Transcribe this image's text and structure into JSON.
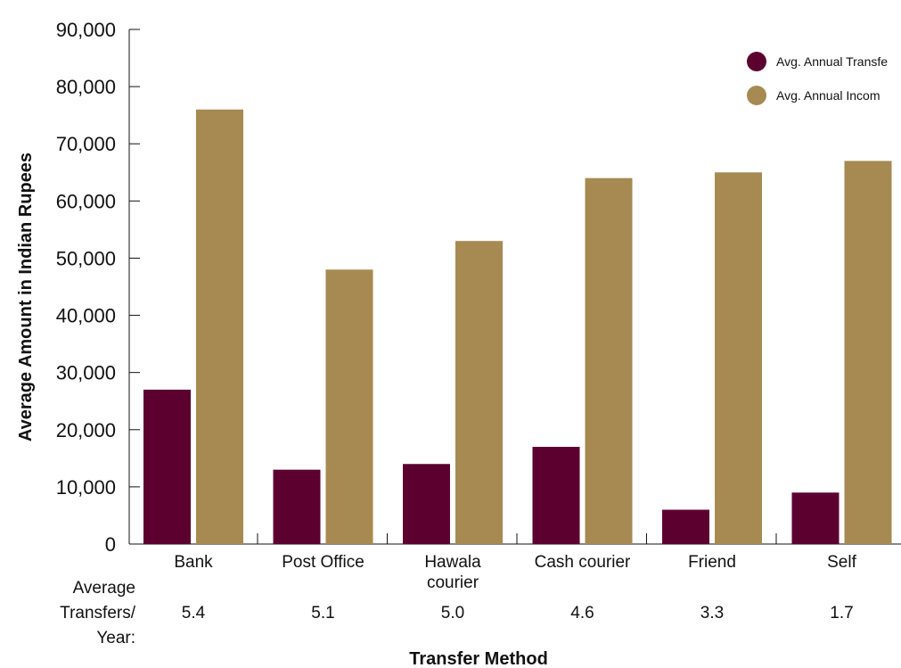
{
  "colors": {
    "transfer": "#5c0030",
    "income": "#a68a52",
    "axis": "#111111"
  },
  "chart_data": {
    "type": "bar",
    "categories": [
      "Bank",
      "Post Office",
      "Hawala courier",
      "Cash courier",
      "Friend",
      "Self"
    ],
    "category_lines": [
      [
        "Bank"
      ],
      [
        "Post Office"
      ],
      [
        "Hawala",
        "courier"
      ],
      [
        "Cash courier"
      ],
      [
        "Friend"
      ],
      [
        "Self"
      ]
    ],
    "series": [
      {
        "name": "Avg. Annual Transfe",
        "values": [
          27000,
          13000,
          14000,
          17000,
          6000,
          9000
        ]
      },
      {
        "name": "Avg. Annual Incom",
        "values": [
          76000,
          48000,
          53000,
          64000,
          65000,
          67000
        ]
      }
    ],
    "ylim": [
      0,
      90000
    ],
    "yticks": [
      "0",
      "10,000",
      "20,000",
      "30,000",
      "40,000",
      "50,000",
      "60,000",
      "70,000",
      "80,000",
      "90,000"
    ],
    "ylabel": "Average Amount in Indian Rupees",
    "xlabel": "Transfer Method",
    "extra_row": {
      "label_lines": [
        "Average",
        "Transfers/",
        "Year:"
      ],
      "values": [
        "5.4",
        "5.1",
        "5.0",
        "4.6",
        "3.3",
        "1.7"
      ]
    },
    "legend_position": "top-right",
    "grid": false
  }
}
